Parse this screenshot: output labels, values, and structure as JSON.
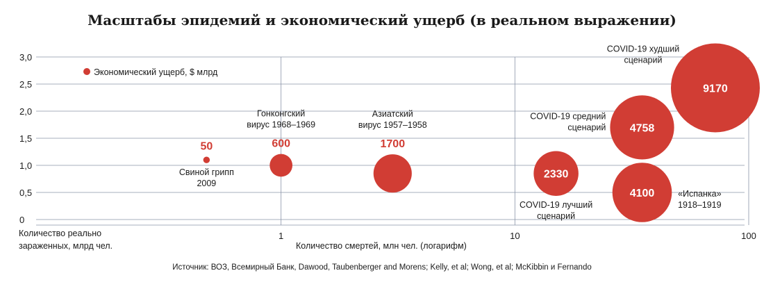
{
  "chart_data": {
    "type": "scatter",
    "subtype": "bubble",
    "title": "Масштабы эпидемий и экономический ущерб (в реальном выражении)",
    "xlabel": "Количество смертей, млн чел. (логарифм)",
    "ylabel": [
      "Количество реально",
      "зараженных, млрд чел."
    ],
    "x_scale": "log",
    "xlim": [
      0.1,
      100
    ],
    "ylim": [
      0,
      3
    ],
    "x_ticks": [
      {
        "value": 1,
        "label": "1"
      },
      {
        "value": 10,
        "label": "10"
      },
      {
        "value": 100,
        "label": "100"
      }
    ],
    "y_ticks": [
      {
        "value": 0,
        "label": "0"
      },
      {
        "value": 0.5,
        "label": "0,5"
      },
      {
        "value": 1.0,
        "label": "1,0"
      },
      {
        "value": 1.5,
        "label": "1,5"
      },
      {
        "value": 2.0,
        "label": "2,0"
      },
      {
        "value": 2.5,
        "label": "2,5"
      },
      {
        "value": 3.0,
        "label": "3,0"
      }
    ],
    "legend": {
      "label": "Экономический ущерб, $ млрд",
      "position": "top-left"
    },
    "bubble_color": "#d13d34",
    "points": [
      {
        "name": [
          "Свиной грипп",
          "2009"
        ],
        "x": 0.48,
        "y": 1.1,
        "value": 50,
        "value_label": "50",
        "value_inside": false,
        "name_pos": "below"
      },
      {
        "name": [
          "Гонконгский",
          "вирус 1968–1969"
        ],
        "x": 1.0,
        "y": 1.0,
        "value": 600,
        "value_label": "600",
        "value_inside": false,
        "name_pos": "above"
      },
      {
        "name": [
          "Азиатский",
          "вирус 1957–1958"
        ],
        "x": 3.0,
        "y": 0.85,
        "value": 1700,
        "value_label": "1700",
        "value_inside": false,
        "name_pos": "above"
      },
      {
        "name": [
          "COVID-19 лучший",
          "сценарий"
        ],
        "x": 15,
        "y": 0.85,
        "value": 2330,
        "value_label": "2330",
        "value_inside": true,
        "name_pos": "below"
      },
      {
        "name": [
          "COVID-19 средний",
          "сценарий"
        ],
        "x": 35,
        "y": 1.7,
        "value": 4758,
        "value_label": "4758",
        "value_inside": true,
        "name_pos": "left"
      },
      {
        "name": [
          "«Испанка»",
          "1918–1919"
        ],
        "x": 35,
        "y": 0.5,
        "value": 4100,
        "value_label": "4100",
        "value_inside": true,
        "name_pos": "right"
      },
      {
        "name": [
          "COVID-19 худший",
          "сценарий"
        ],
        "x": 72,
        "y": 2.43,
        "value": 9170,
        "value_label": "9170",
        "value_inside": true,
        "name_pos": "upper-left"
      }
    ],
    "source": "Источник: ВОЗ, Всемирный Банк, Dawood, Taubenberger and Morens; Kelly, et al; Wong, et al; McKibbin и  Fernando"
  }
}
